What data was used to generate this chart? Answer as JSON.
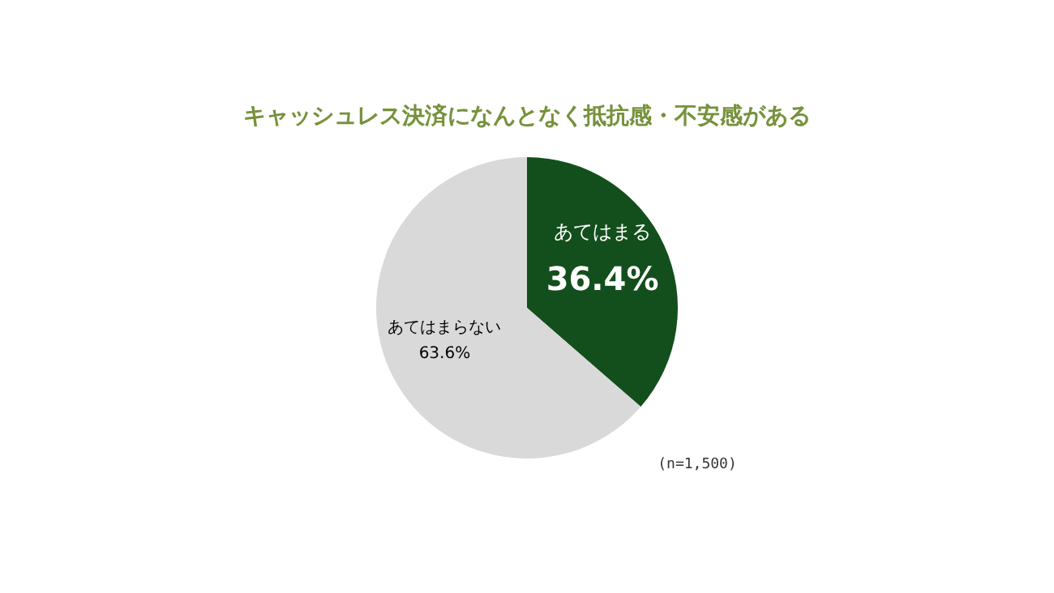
{
  "chart_data": {
    "type": "pie",
    "title": "キャッシュレス決済になんとなく抵抗感・不安感がある",
    "categories": [
      "あてはまる",
      "あてはまらない"
    ],
    "values": [
      36.4,
      63.6
    ],
    "value_labels": [
      "36.4%",
      "63.6%"
    ],
    "colors": [
      "#134f1c",
      "#d9d9d9"
    ],
    "legend": false,
    "annotations": [
      "(n=1,500)"
    ]
  }
}
